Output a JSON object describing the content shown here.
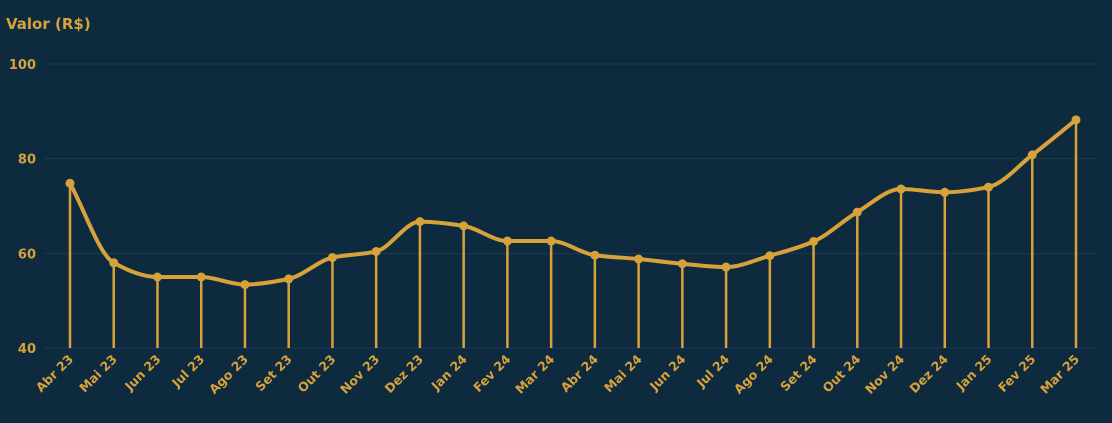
{
  "colors": {
    "background": "#0d2a3f",
    "accent": "#d7a23a",
    "grid": "#1f3a4e"
  },
  "chart_data": {
    "type": "line",
    "ylabel": "Valor (R$)",
    "xlabel": "",
    "ylim": [
      40,
      100
    ],
    "yticks": [
      40,
      60,
      80,
      100
    ],
    "grid": true,
    "categories": [
      "Abr 23",
      "Mai 23",
      "Jun 23",
      "Jul 23",
      "Ago 23",
      "Set 23",
      "Out 23",
      "Nov 23",
      "Dez 23",
      "Jan 24",
      "Fev 24",
      "Mar 24",
      "Abr 24",
      "Mai 24",
      "Jun 24",
      "Jul 24",
      "Ago 24",
      "Set 24",
      "Out 24",
      "Nov 24",
      "Dez 24",
      "Jan 25",
      "Fev 25",
      "Mar 25"
    ],
    "series": [
      {
        "values": [
          74.8,
          58.0,
          55.0,
          55.0,
          53.4,
          54.6,
          59.1,
          60.4,
          66.7,
          65.8,
          62.6,
          62.6,
          59.6,
          58.8,
          57.8,
          57.1,
          59.5,
          62.5,
          68.7,
          73.6,
          72.9,
          74.0,
          80.8,
          88.2
        ]
      }
    ]
  }
}
